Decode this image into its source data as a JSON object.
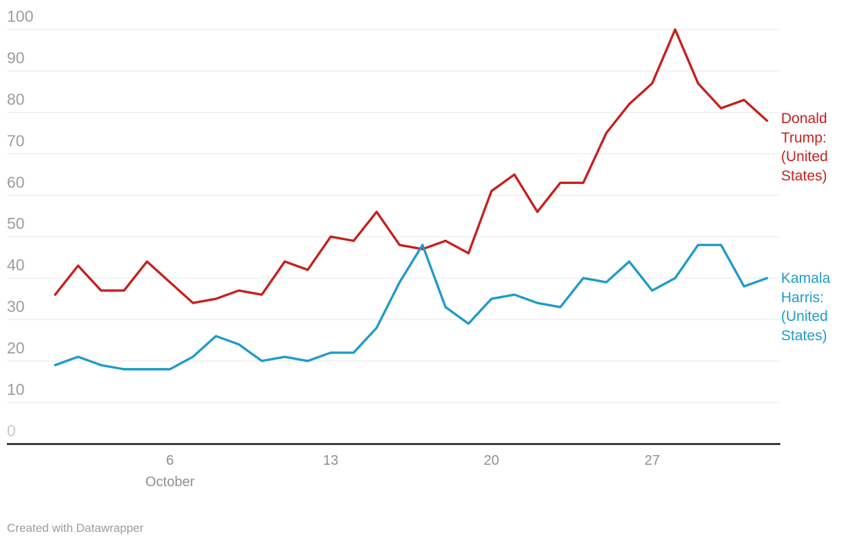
{
  "chart_data": {
    "type": "line",
    "x": [
      "Oct 1",
      "Oct 2",
      "Oct 3",
      "Oct 4",
      "Oct 5",
      "Oct 6",
      "Oct 7",
      "Oct 8",
      "Oct 9",
      "Oct 10",
      "Oct 11",
      "Oct 12",
      "Oct 13",
      "Oct 14",
      "Oct 15",
      "Oct 16",
      "Oct 17",
      "Oct 18",
      "Oct 19",
      "Oct 20",
      "Oct 21",
      "Oct 22",
      "Oct 23",
      "Oct 24",
      "Oct 25",
      "Oct 26",
      "Oct 27",
      "Oct 28",
      "Oct 29",
      "Oct 30",
      "Oct 31",
      "Nov 1"
    ],
    "x_axis": {
      "month_label": "October",
      "ticks": [
        {
          "label": "6",
          "index": 5
        },
        {
          "label": "13",
          "index": 12
        },
        {
          "label": "20",
          "index": 19
        },
        {
          "label": "27",
          "index": 26
        }
      ]
    },
    "y_axis": {
      "min": 0,
      "max": 100,
      "step": 10,
      "tick_labels": [
        "0",
        "10",
        "20",
        "30",
        "40",
        "50",
        "60",
        "70",
        "80",
        "90",
        "100"
      ]
    },
    "series": [
      {
        "name": "Donald Trump: (United States)",
        "color": "#c5211d",
        "values": [
          36,
          43,
          37,
          37,
          44,
          39,
          34,
          35,
          37,
          36,
          44,
          42,
          50,
          49,
          56,
          48,
          47,
          49,
          46,
          61,
          65,
          56,
          63,
          63,
          75,
          82,
          87,
          100,
          87,
          81,
          83,
          78
        ]
      },
      {
        "name": "Kamala Harris: (United States)",
        "color": "#1f9bc9",
        "values": [
          19,
          21,
          19,
          18,
          18,
          18,
          21,
          26,
          24,
          20,
          21,
          20,
          22,
          22,
          28,
          39,
          48,
          33,
          29,
          35,
          36,
          34,
          33,
          40,
          39,
          44,
          37,
          40,
          48,
          48,
          38,
          40
        ]
      }
    ],
    "grid": "horizontal",
    "legend_position": "right-end-labels",
    "ylim": [
      0,
      100
    ],
    "title": "",
    "xlabel": "",
    "ylabel": ""
  },
  "colors": {
    "gridline": "#e7e7e7",
    "axis_line": "#161616",
    "y_tick_text": "#9d9d9d",
    "y_zero_tick_text": "#c9c9c9",
    "x_tick_text": "#8f8f8f"
  },
  "footer": {
    "credit": "Created with Datawrapper"
  }
}
